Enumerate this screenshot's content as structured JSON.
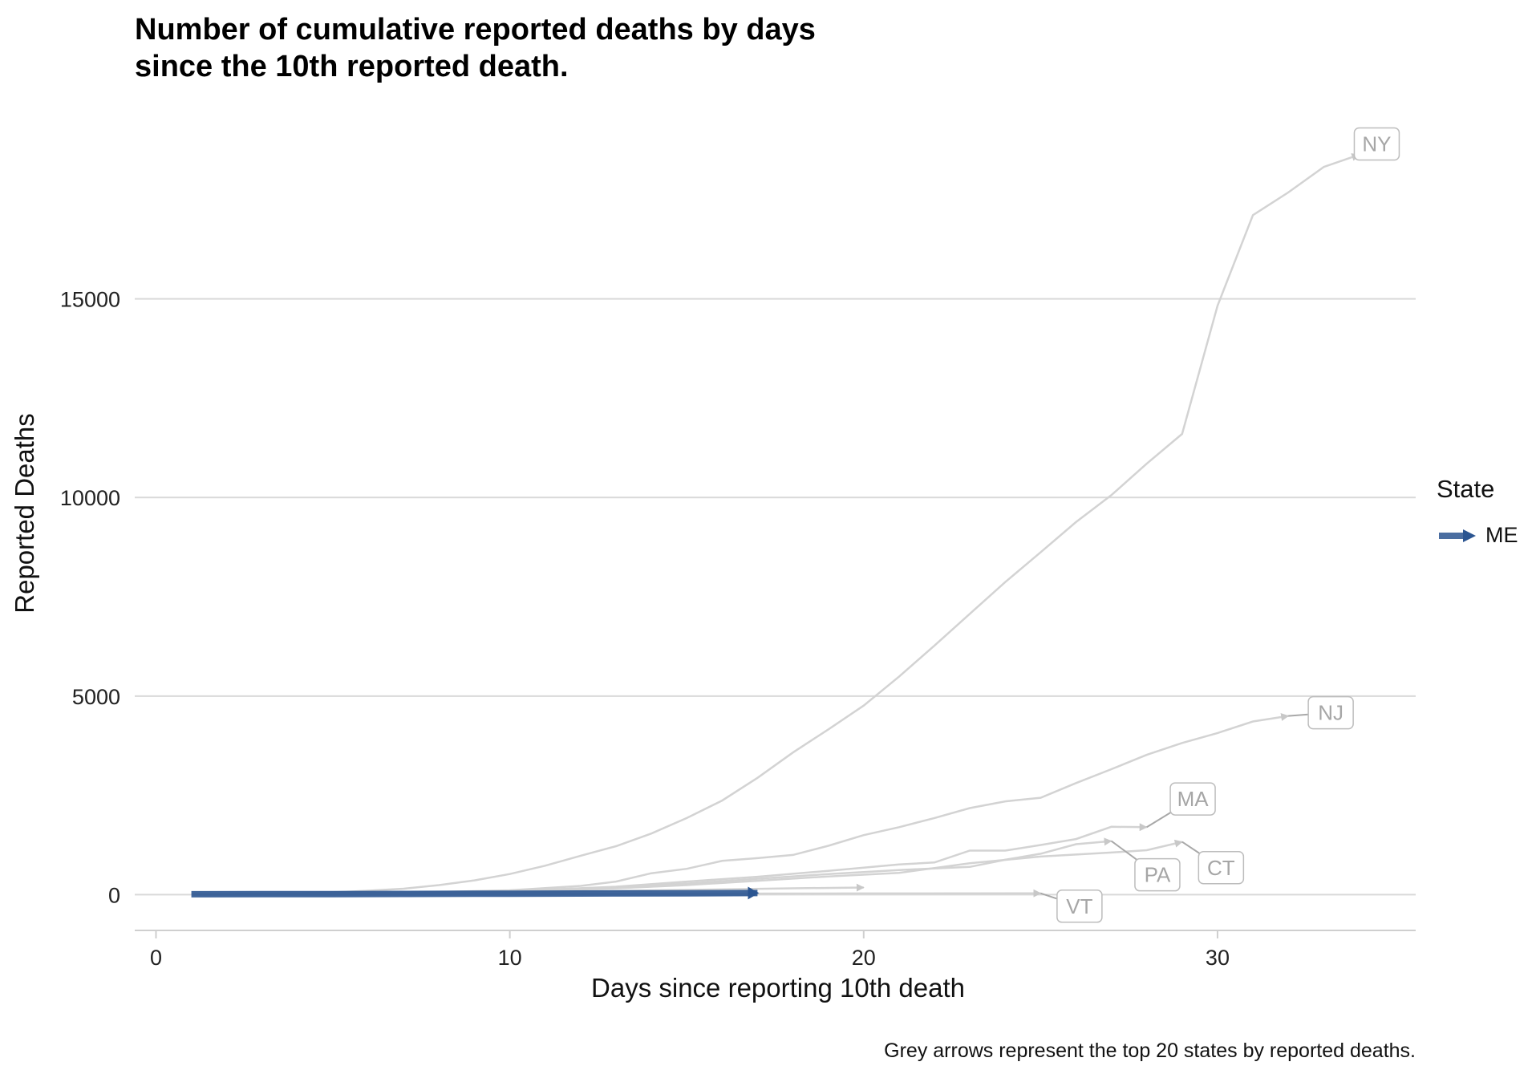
{
  "title_line1": "Number of cumulative reported deaths by days",
  "title_line2": "since the 10th reported death.",
  "caption": "Grey arrows represent the top 20 states by reported deaths.",
  "legend": {
    "title": "State",
    "item": "ME",
    "color": "#2b5591"
  },
  "colors": {
    "grey_line": "#d3d3d3",
    "grid": "#d9d9d9",
    "label_text": "#a6a6a6",
    "label_border": "#bdbdbd",
    "highlight": "#2b5591"
  },
  "chart_data": {
    "type": "line",
    "title": "Number of cumulative reported deaths by days since the 10th reported death.",
    "xlabel": "Days since reporting 10th death",
    "ylabel": "Reported Deaths",
    "xlim": [
      -0.6,
      35.6
    ],
    "ylim": [
      -900,
      19900
    ],
    "x_ticks": [
      0,
      10,
      20,
      30
    ],
    "y_ticks": [
      0,
      5000,
      10000,
      15000
    ],
    "grid": "horizontal",
    "legend_position": "right",
    "series": [
      {
        "name": "NY",
        "labeled": true,
        "x": [
          1,
          2,
          3,
          4,
          5,
          6,
          7,
          8,
          9,
          10,
          11,
          12,
          13,
          14,
          15,
          16,
          17,
          18,
          19,
          20,
          21,
          22,
          23,
          24,
          25,
          26,
          27,
          28,
          29,
          30,
          31,
          32,
          33,
          34
        ],
        "y": [
          10,
          17,
          25,
          35,
          60,
          100,
          150,
          240,
          360,
          520,
          730,
          980,
          1220,
          1540,
          1930,
          2370,
          2940,
          3580,
          4160,
          4760,
          5490,
          6270,
          7070,
          7870,
          8620,
          9380,
          10060,
          10850,
          11600,
          14830,
          17110,
          17680,
          18320,
          18630
        ]
      },
      {
        "name": "NJ",
        "labeled": true,
        "x": [
          1,
          4,
          7,
          10,
          12,
          13,
          14,
          15,
          16,
          17,
          18,
          19,
          20,
          21,
          22,
          23,
          24,
          25,
          26,
          27,
          28,
          29,
          30,
          31,
          32
        ],
        "y": [
          10,
          25,
          50,
          110,
          220,
          330,
          540,
          650,
          850,
          920,
          1000,
          1230,
          1500,
          1700,
          1930,
          2180,
          2350,
          2440,
          2810,
          3160,
          3520,
          3820,
          4070,
          4360,
          4500
        ]
      },
      {
        "name": "MA",
        "labeled": true,
        "x": [
          1,
          4,
          7,
          10,
          13,
          15,
          17,
          19,
          21,
          22,
          23,
          24,
          25,
          26,
          27,
          28
        ],
        "y": [
          10,
          20,
          40,
          90,
          200,
          330,
          450,
          600,
          760,
          810,
          1110,
          1110,
          1250,
          1400,
          1710,
          1700
        ]
      },
      {
        "name": "PA",
        "labeled": true,
        "x": [
          1,
          4,
          7,
          10,
          13,
          15,
          17,
          19,
          21,
          23,
          24,
          25,
          26,
          27
        ],
        "y": [
          10,
          20,
          40,
          90,
          190,
          280,
          400,
          520,
          620,
          700,
          880,
          1030,
          1270,
          1350
        ]
      },
      {
        "name": "CT",
        "labeled": true,
        "x": [
          1,
          4,
          7,
          10,
          13,
          15,
          17,
          19,
          21,
          23,
          25,
          27,
          28,
          29
        ],
        "y": [
          10,
          20,
          35,
          70,
          160,
          240,
          350,
          460,
          550,
          790,
          960,
          1060,
          1120,
          1330
        ]
      },
      {
        "name": "VT",
        "labeled": true,
        "x": [
          1,
          5,
          10,
          15,
          20,
          25
        ],
        "y": [
          10,
          15,
          20,
          25,
          30,
          35
        ]
      },
      {
        "name": "",
        "labeled": false,
        "x": [
          1,
          5,
          10,
          15,
          18,
          20
        ],
        "y": [
          10,
          25,
          60,
          120,
          160,
          180
        ]
      },
      {
        "name": "ME",
        "highlight": true,
        "x": [
          1,
          3,
          5,
          7,
          9,
          11,
          13,
          15,
          17
        ],
        "y": [
          10,
          12,
          14,
          18,
          22,
          27,
          31,
          36,
          42
        ]
      }
    ],
    "annotations": [
      {
        "text": "NY",
        "x": 34.5,
        "y": 18900
      },
      {
        "text": "NJ",
        "x": 33.2,
        "y": 4580
      },
      {
        "text": "MA",
        "x": 29.3,
        "y": 2410
      },
      {
        "text": "PA",
        "x": 28.3,
        "y": 500
      },
      {
        "text": "CT",
        "x": 30.1,
        "y": 680
      },
      {
        "text": "VT",
        "x": 26.1,
        "y": -290
      }
    ]
  }
}
